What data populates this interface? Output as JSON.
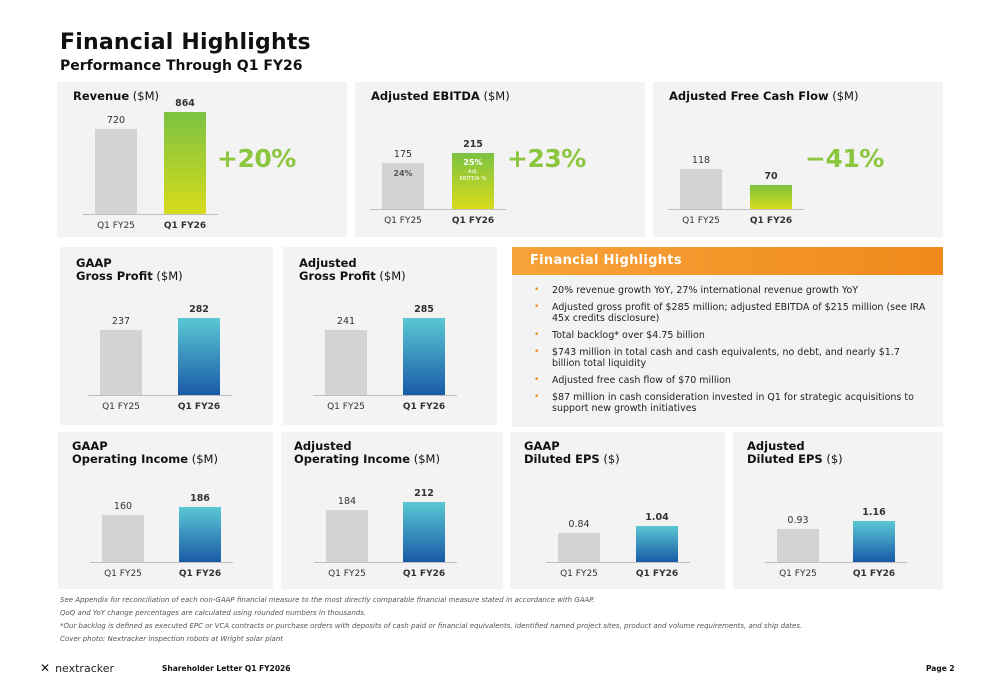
{
  "header": {
    "title": "Financial Highlights",
    "subtitle": "Performance Through Q1 FY26"
  },
  "colors": {
    "prior_bar": "#d3d3d3",
    "green_top": "#7cc242",
    "green_bottom": "#d7dc1b",
    "blue_top": "#5ac8d4",
    "blue_bottom": "#1a5aa8",
    "change_green": "#8cc63f",
    "accent_orange": "#f08a1a"
  },
  "cards": [
    {
      "title_bold": "Revenue",
      "title_bold_line2": "",
      "unit": "($M)",
      "change": "+20%",
      "palette": "green"
    },
    {
      "title_bold": "Adjusted EBITDA",
      "title_bold_line2": "",
      "unit": "($M)",
      "change": "+23%",
      "palette": "green",
      "inner_prior": "24%",
      "inner_current": "25%",
      "inner_current_sub1": "Adj.",
      "inner_current_sub2": "EBITDA %"
    },
    {
      "title_bold": "Adjusted Free Cash Flow",
      "title_bold_line2": "",
      "unit": "($M)",
      "change": "−41%",
      "palette": "green"
    },
    {
      "title_bold": "GAAP",
      "title_bold_line2": "Gross Profit",
      "unit": "($M)",
      "change": "",
      "palette": "blue"
    },
    {
      "title_bold": "Adjusted",
      "title_bold_line2": "Gross Profit",
      "unit": "($M)",
      "change": "",
      "palette": "blue"
    },
    {
      "title_bold": "GAAP",
      "title_bold_line2": "Operating Income",
      "unit": "($M)",
      "change": "",
      "palette": "blue"
    },
    {
      "title_bold": "Adjusted",
      "title_bold_line2": "Operating Income",
      "unit": "($M)",
      "change": "",
      "palette": "blue"
    },
    {
      "title_bold": "GAAP",
      "title_bold_line2": "Diluted EPS",
      "unit": "($)",
      "change": "",
      "palette": "blue"
    },
    {
      "title_bold": "Adjusted",
      "title_bold_line2": "Diluted EPS",
      "unit": "($)",
      "change": "",
      "palette": "blue"
    }
  ],
  "chart_data": [
    {
      "type": "bar",
      "title": "Revenue ($M)",
      "categories": [
        "Q1 FY25",
        "Q1 FY26"
      ],
      "values": [
        720,
        864
      ],
      "value_labels": [
        "720",
        "864"
      ],
      "ylim": [
        0,
        864
      ]
    },
    {
      "type": "bar",
      "title": "Adjusted EBITDA ($M)",
      "categories": [
        "Q1 FY25",
        "Q1 FY26"
      ],
      "values": [
        175,
        215
      ],
      "value_labels": [
        "175",
        "215"
      ],
      "ylim": [
        0,
        215
      ]
    },
    {
      "type": "bar",
      "title": "Adjusted Free Cash Flow ($M)",
      "categories": [
        "Q1 FY25",
        "Q1 FY26"
      ],
      "values": [
        118,
        70
      ],
      "value_labels": [
        "118",
        "70"
      ],
      "ylim": [
        0,
        118
      ]
    },
    {
      "type": "bar",
      "title": "GAAP Gross Profit ($M)",
      "categories": [
        "Q1 FY25",
        "Q1 FY26"
      ],
      "values": [
        237,
        282
      ],
      "value_labels": [
        "237",
        "282"
      ],
      "ylim": [
        0,
        282
      ]
    },
    {
      "type": "bar",
      "title": "Adjusted Gross Profit ($M)",
      "categories": [
        "Q1 FY25",
        "Q1 FY26"
      ],
      "values": [
        241,
        285
      ],
      "value_labels": [
        "241",
        "285"
      ],
      "ylim": [
        0,
        285
      ]
    },
    {
      "type": "bar",
      "title": "GAAP Operating Income ($M)",
      "categories": [
        "Q1 FY25",
        "Q1 FY26"
      ],
      "values": [
        160,
        186
      ],
      "value_labels": [
        "160",
        "186"
      ],
      "ylim": [
        0,
        186
      ]
    },
    {
      "type": "bar",
      "title": "Adjusted Operating Income ($M)",
      "categories": [
        "Q1 FY25",
        "Q1 FY26"
      ],
      "values": [
        184,
        212
      ],
      "value_labels": [
        "184",
        "212"
      ],
      "ylim": [
        0,
        212
      ]
    },
    {
      "type": "bar",
      "title": "GAAP Diluted EPS ($)",
      "categories": [
        "Q1 FY25",
        "Q1 FY26"
      ],
      "values": [
        0.84,
        1.04
      ],
      "value_labels": [
        "0.84",
        "1.04"
      ],
      "ylim": [
        0,
        1.04
      ]
    },
    {
      "type": "bar",
      "title": "Adjusted Diluted EPS ($)",
      "categories": [
        "Q1 FY25",
        "Q1 FY26"
      ],
      "values": [
        0.93,
        1.16
      ],
      "value_labels": [
        "0.93",
        "1.16"
      ],
      "ylim": [
        0,
        1.16
      ]
    }
  ],
  "highlights": {
    "title": "Financial Highlights",
    "items": [
      "20% revenue growth YoY, 27% international revenue growth YoY",
      "Adjusted gross profit of $285 million; adjusted EBITDA of $215 million (see IRA 45x credits disclosure)",
      "Total backlog* over $4.75 billion",
      "$743 million in total cash and cash equivalents, no debt, and nearly $1.7 billion total liquidity",
      "Adjusted free cash flow of $70 million",
      "$87 million in cash consideration invested in Q1 for strategic acquisitions to support new growth initiatives"
    ]
  },
  "notes": [
    "See Appendix for reconciliation of each non-GAAP financial measure to the most directly comparable financial measure stated in accordance with GAAP.",
    "QoQ and YoY change percentages are calculated using rounded numbers in thousands.",
    "*Our backlog is defined as executed EPC or VCA contracts or purchase orders with deposits of cash paid or financial equivalents, identified named project sites, product and volume requirements, and ship dates.",
    "Cover photo: Nextracker inspection robots at Wright solar plant"
  ],
  "footer": {
    "logo_word": "nextracker",
    "doc": "Shareholder Letter Q1 FY2026",
    "page": "Page 2"
  }
}
